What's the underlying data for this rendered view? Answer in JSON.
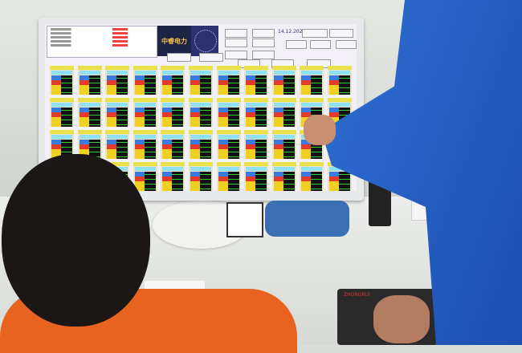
{
  "screen": {
    "logo_text": "中睿电力",
    "date": "14.12.2020",
    "buttons": [
      "",
      "",
      "",
      "",
      "",
      "",
      "",
      "",
      "",
      "",
      "",
      "",
      "",
      "",
      "",
      ""
    ],
    "panel_grid": {
      "rows": 4,
      "columns": 11
    },
    "colors": {
      "panel_header": "#e9e14a",
      "panel_name": "#8fe0f0",
      "status_run": "#3a7ae0",
      "status_alarm": "#e53a2a",
      "status_other": "#f0d020",
      "value_bg": "#111111",
      "value_text": "#33cc33"
    }
  },
  "pad": {
    "brand": "ZHONGRUI"
  }
}
